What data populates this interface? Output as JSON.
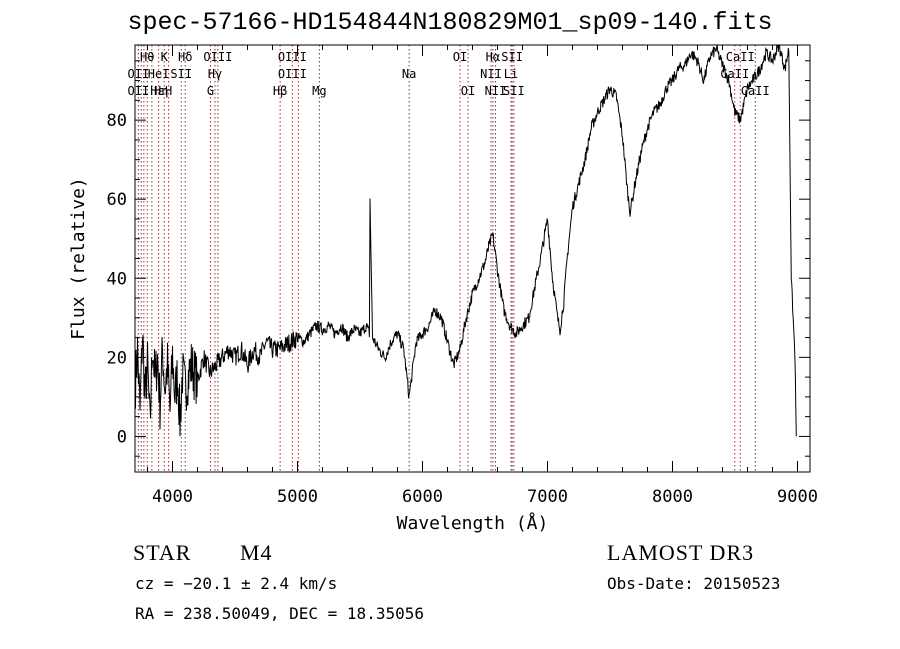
{
  "chart_data": {
    "type": "line",
    "title": "spec-57166-HD154844N180829M01_sp09-140.fits",
    "xlabel": "Wavelength (Å)",
    "ylabel": "Flux (relative)",
    "xlim": [
      3700,
      9100
    ],
    "ylim": [
      -9,
      99
    ],
    "xticks": [
      4000,
      5000,
      6000,
      7000,
      8000,
      9000
    ],
    "yticks": [
      0,
      20,
      40,
      60,
      80
    ],
    "grid": false,
    "series": [
      {
        "name": "flux",
        "x": [
          3700,
          3720,
          3740,
          3760,
          3780,
          3800,
          3820,
          3840,
          3860,
          3880,
          3900,
          3920,
          3940,
          3960,
          3980,
          4000,
          4020,
          4040,
          4060,
          4080,
          4100,
          4150,
          4200,
          4250,
          4300,
          4350,
          4400,
          4450,
          4500,
          4550,
          4600,
          4650,
          4700,
          4750,
          4800,
          4850,
          4900,
          4950,
          5000,
          5050,
          5100,
          5150,
          5200,
          5250,
          5300,
          5350,
          5400,
          5450,
          5500,
          5550,
          5575,
          5580,
          5600,
          5650,
          5700,
          5750,
          5800,
          5850,
          5893,
          5950,
          6000,
          6050,
          6100,
          6150,
          6200,
          6250,
          6300,
          6350,
          6400,
          6450,
          6500,
          6530,
          6563,
          6600,
          6650,
          6700,
          6750,
          6800,
          6850,
          6900,
          6950,
          7000,
          7040,
          7080,
          7100,
          7130,
          7160,
          7200,
          7250,
          7300,
          7350,
          7400,
          7450,
          7500,
          7550,
          7600,
          7640,
          7660,
          7680,
          7700,
          7750,
          7800,
          7850,
          7900,
          7950,
          8000,
          8050,
          8100,
          8150,
          8200,
          8250,
          8300,
          8350,
          8400,
          8450,
          8498,
          8542,
          8600,
          8662,
          8700,
          8750,
          8800,
          8850,
          8900,
          8930,
          8950,
          8980,
          8990
        ],
        "values": [
          12,
          22,
          6,
          26,
          10,
          18,
          2,
          24,
          14,
          20,
          8,
          22,
          12,
          18,
          6,
          20,
          10,
          16,
          4,
          16,
          12,
          18,
          14,
          20,
          16,
          18,
          20,
          22,
          20,
          22,
          18,
          22,
          20,
          24,
          22,
          22,
          23,
          24,
          25,
          24,
          26,
          28,
          27,
          28,
          26,
          28,
          25,
          27,
          26,
          28,
          26,
          60,
          25,
          22,
          20,
          24,
          26,
          22,
          10,
          24,
          26,
          28,
          32,
          30,
          24,
          18,
          22,
          30,
          36,
          40,
          44,
          48,
          51,
          42,
          32,
          28,
          26,
          28,
          30,
          38,
          46,
          55,
          40,
          30,
          27,
          34,
          46,
          58,
          64,
          70,
          78,
          82,
          85,
          88,
          86,
          76,
          62,
          57,
          60,
          64,
          72,
          78,
          82,
          84,
          88,
          90,
          93,
          94,
          97,
          95,
          90,
          96,
          98,
          94,
          90,
          82,
          80,
          88,
          91,
          93,
          97,
          95,
          99,
          93,
          98,
          40,
          20,
          0
        ]
      }
    ],
    "line_labels": [
      {
        "text": "Hθ",
        "x": 3798,
        "row": 1
      },
      {
        "text": "K",
        "x": 3934,
        "row": 1
      },
      {
        "text": "Hδ",
        "x": 4102,
        "row": 1
      },
      {
        "text": "OIII",
        "x": 4363,
        "row": 1
      },
      {
        "text": "OIII",
        "x": 4959,
        "row": 1
      },
      {
        "text": "OI",
        "x": 6300,
        "row": 1
      },
      {
        "text": "Hα",
        "x": 6563,
        "row": 1
      },
      {
        "text": "SII",
        "x": 6717,
        "row": 1
      },
      {
        "text": "CaII",
        "x": 8542,
        "row": 1
      },
      {
        "text": "OII",
        "x": 3727,
        "row": 2
      },
      {
        "text": "HeI",
        "x": 3889,
        "row": 2
      },
      {
        "text": "SII",
        "x": 4070,
        "row": 2
      },
      {
        "text": "Hγ",
        "x": 4340,
        "row": 2
      },
      {
        "text": "OIII",
        "x": 4959,
        "row": 2
      },
      {
        "text": "Na",
        "x": 5893,
        "row": 2
      },
      {
        "text": "NII",
        "x": 6548,
        "row": 2
      },
      {
        "text": "Li",
        "x": 6708,
        "row": 2
      },
      {
        "text": "CaII",
        "x": 8498,
        "row": 2
      },
      {
        "text": "OII",
        "x": 3727,
        "row": 3
      },
      {
        "text": "Hε",
        "x": 3880,
        "row": 3
      },
      {
        "text": "Hη",
        "x": 3910,
        "row": 3
      },
      {
        "text": "H",
        "x": 3969,
        "row": 3
      },
      {
        "text": "G",
        "x": 4304,
        "row": 3
      },
      {
        "text": "Hβ",
        "x": 4861,
        "row": 3
      },
      {
        "text": "Mg",
        "x": 5175,
        "row": 3
      },
      {
        "text": "OI",
        "x": 6364,
        "row": 3
      },
      {
        "text": "NII",
        "x": 6584,
        "row": 3
      },
      {
        "text": "SII",
        "x": 6731,
        "row": 3
      },
      {
        "text": "CaII",
        "x": 8662,
        "row": 3
      }
    ],
    "line_positions": [
      3727,
      3750,
      3771,
      3798,
      3835,
      3889,
      3934,
      3969,
      4070,
      4102,
      4304,
      4340,
      4363,
      4861,
      4959,
      5007,
      5175,
      5893,
      6300,
      6364,
      6548,
      6563,
      6584,
      6708,
      6717,
      6731,
      8498,
      8542,
      8662
    ]
  },
  "info": {
    "object_type": "STAR",
    "subclass": "M4",
    "survey": "LAMOST DR3",
    "cz": "cz = −20.1 ± 2.4 km/s",
    "obs_date": "Obs-Date: 20150523",
    "coords": "RA = 238.50049, DEC =  18.35056"
  }
}
